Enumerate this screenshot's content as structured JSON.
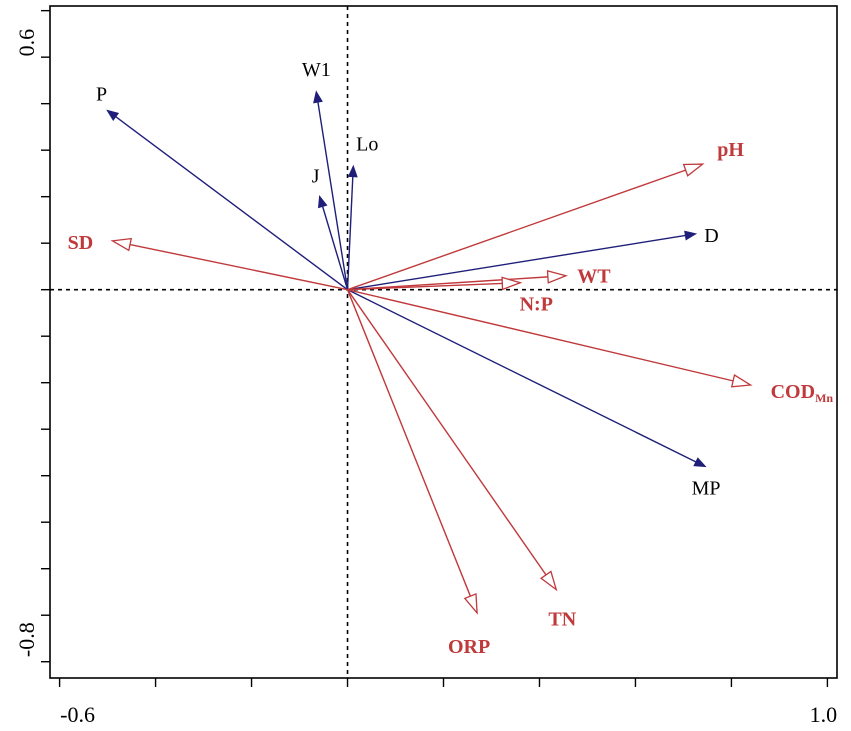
{
  "chart_data": {
    "type": "biplot",
    "x_ticks": {
      "min": "-0.6",
      "max": "1.0"
    },
    "y_ticks": {
      "max": "0.6",
      "min": "-0.8"
    },
    "xlim": [
      -0.62,
      1.02
    ],
    "ylim": [
      -0.835,
      0.61
    ],
    "colors": {
      "species": "#1f1f7a",
      "environment": "#c0393b",
      "frame": "#000000"
    },
    "species": [
      {
        "label": "P",
        "x": -0.5,
        "y": 0.385
      },
      {
        "label": "W1",
        "x": -0.065,
        "y": 0.425
      },
      {
        "label": "Lo",
        "x": 0.012,
        "y": 0.265
      },
      {
        "label": "J",
        "x": -0.058,
        "y": 0.2
      },
      {
        "label": "D",
        "x": 0.725,
        "y": 0.12
      },
      {
        "label": "MP",
        "x": 0.745,
        "y": -0.38
      }
    ],
    "environment": [
      {
        "label": "pH",
        "sub": "",
        "x": 0.74,
        "y": 0.27
      },
      {
        "label": "SD",
        "sub": "",
        "x": -0.49,
        "y": 0.105
      },
      {
        "label": "WT",
        "sub": "",
        "x": 0.455,
        "y": 0.03
      },
      {
        "label": "N:P",
        "sub": "",
        "x": 0.36,
        "y": 0.015
      },
      {
        "label": "COD",
        "sub": "Mn",
        "x": 0.84,
        "y": -0.205
      },
      {
        "label": "TN",
        "sub": "",
        "x": 0.435,
        "y": -0.645
      },
      {
        "label": "ORP",
        "sub": "",
        "x": 0.27,
        "y": -0.695
      }
    ]
  }
}
